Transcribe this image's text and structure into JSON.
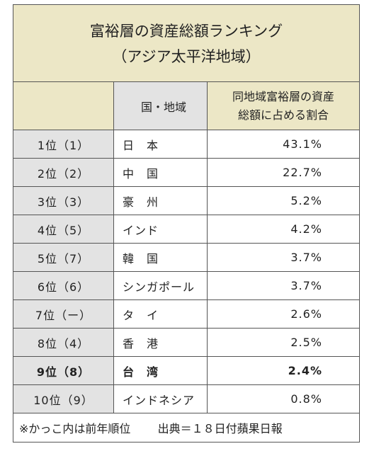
{
  "title": {
    "line1": "富裕層の資産総額ランキング",
    "line2": "（アジア太平洋地域）"
  },
  "header": {
    "country": "国・地域",
    "share_line1": "同地域富裕層の資産",
    "share_line2": "総額に占める割合"
  },
  "rows": [
    {
      "rank": "1位（1）",
      "country": "日　本",
      "share": "43.1%"
    },
    {
      "rank": "2位（2）",
      "country": "中　国",
      "share": "22.7%"
    },
    {
      "rank": "3位（3）",
      "country": "豪　州",
      "share": "5.2%"
    },
    {
      "rank": "4位（5）",
      "country": "インド",
      "share": "4.2%"
    },
    {
      "rank": "5位（7）",
      "country": "韓　国",
      "share": "3.7%"
    },
    {
      "rank": "6位（6）",
      "country": "シンガポール",
      "share": "3.7%"
    },
    {
      "rank": "7位（ー）",
      "country": "タ　イ",
      "share": "2.6%"
    },
    {
      "rank": "8位（4）",
      "country": "香　港",
      "share": "2.5%"
    },
    {
      "rank": "9位（8）",
      "country": "台　湾",
      "share": "2.4%"
    },
    {
      "rank": "10位（9）",
      "country": "インドネシア",
      "share": "0.8%"
    }
  ],
  "footer": {
    "note": "※かっこ内は前年順位",
    "source": "出典＝１８日付蘋果日報"
  }
}
